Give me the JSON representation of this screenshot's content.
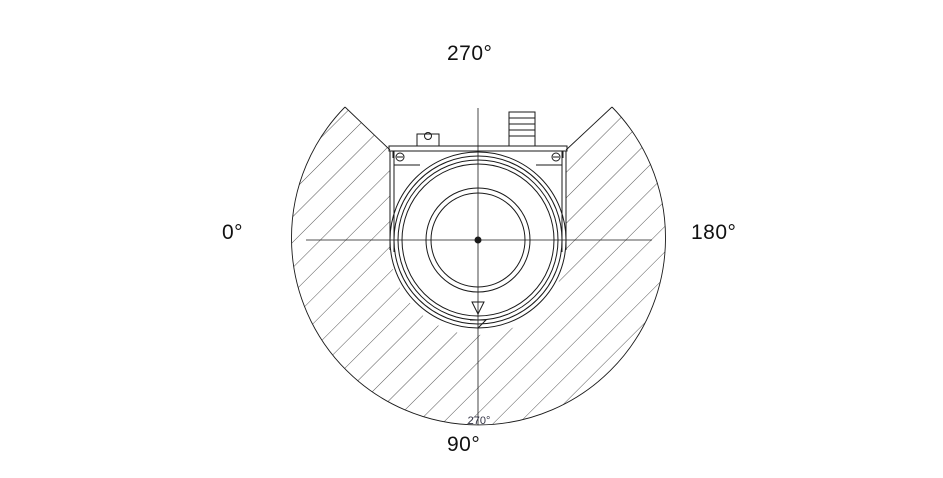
{
  "labels": {
    "top": "270°",
    "left": "0°",
    "right": "180°",
    "bottom": "90°",
    "arc_small": "270°"
  },
  "colors": {
    "line": "#1a1a1a",
    "hatch": "#444444",
    "background": "#ffffff"
  }
}
